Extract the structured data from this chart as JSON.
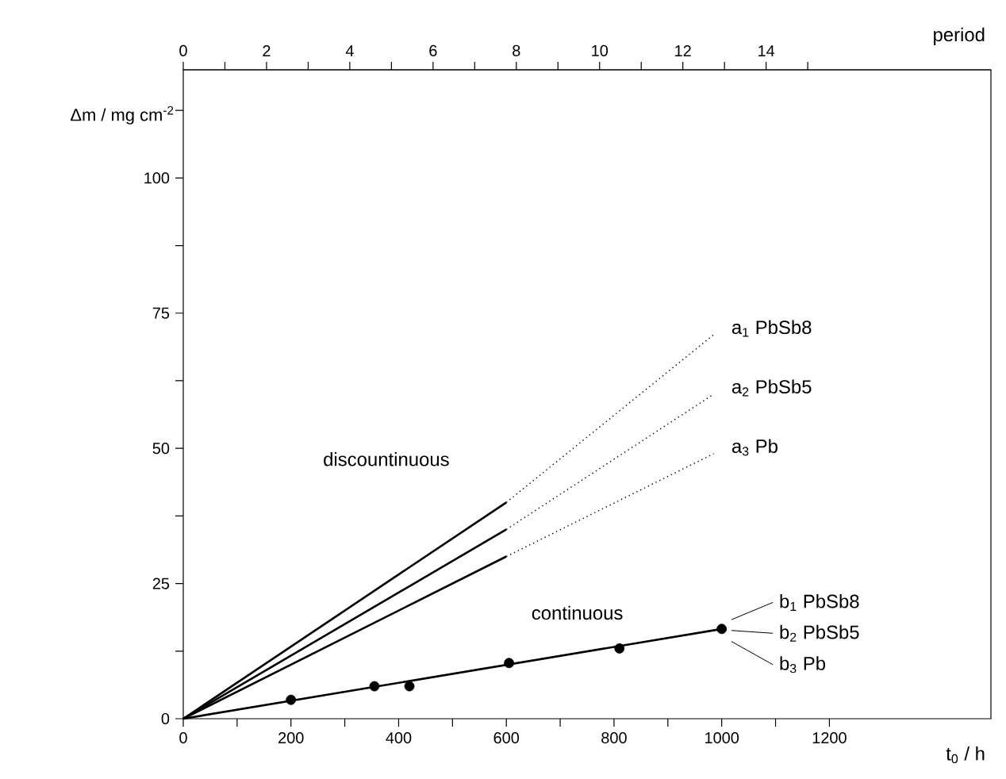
{
  "chart_data": {
    "type": "line",
    "xlabel": "t$_{0}$ / h",
    "ylabel": "Δm / mg cm$^{-2}$",
    "x2label": "period",
    "xlim": [
      0,
      1500
    ],
    "ylim": [
      0,
      120
    ],
    "x2lim": [
      0,
      19.4
    ],
    "xticks": [
      0,
      {
        "value": 100,
        "label": null
      },
      200,
      {
        "value": 300,
        "label": null
      },
      400,
      {
        "value": 500,
        "label": null
      },
      600,
      {
        "value": 700,
        "label": null
      },
      800,
      {
        "value": 900,
        "label": null
      },
      1000,
      {
        "value": 1100,
        "label": null
      },
      1200
    ],
    "yticks": [
      0,
      {
        "value": 12.5,
        "label": null
      },
      25,
      {
        "value": 37.5,
        "label": null
      },
      50,
      {
        "value": 62.5,
        "label": null
      },
      75,
      {
        "value": 87.5,
        "label": null
      },
      100,
      {
        "value": 112.5,
        "label": null
      }
    ],
    "x2ticks": [
      0,
      {
        "value": 1,
        "label": null
      },
      2,
      {
        "value": 3,
        "label": null
      },
      4,
      {
        "value": 5,
        "label": null
      },
      6,
      {
        "value": 7,
        "label": null
      },
      8,
      {
        "value": 9,
        "label": null
      },
      10,
      {
        "value": 11,
        "label": null
      },
      12,
      {
        "value": 13,
        "label": null
      },
      14,
      {
        "value": 15,
        "label": null
      }
    ],
    "grid": false,
    "series": [
      {
        "color": "#000000",
        "line_style": "solid",
        "x": [
          0,
          600
        ],
        "values": [
          0,
          40
        ]
      },
      {
        "color": "#000000",
        "line_style": "solid",
        "x": [
          0,
          600
        ],
        "values": [
          0,
          35
        ]
      },
      {
        "color": "#000000",
        "line_style": "solid",
        "x": [
          0,
          600
        ],
        "values": [
          0,
          30
        ]
      },
      {
        "name": "a$_{1}$ PbSb8",
        "color": "#000000",
        "line_style": "dotted",
        "x": [
          600,
          985
        ],
        "values": [
          40,
          71
        ]
      },
      {
        "name": "a$_{2}$ PbSb5",
        "color": "#000000",
        "line_style": "dotted",
        "x": [
          600,
          985
        ],
        "values": [
          35,
          60
        ]
      },
      {
        "name": "a$_{3}$ Pb",
        "color": "#000000",
        "line_style": "dotted",
        "x": [
          600,
          985
        ],
        "values": [
          30,
          49
        ]
      },
      {
        "color": "#000000",
        "line_style": "solid",
        "x": [
          0,
          1000
        ],
        "values": [
          0,
          16.6
        ]
      },
      {
        "type": "scatter",
        "marker": "circle",
        "color": "#000000",
        "x": [
          200,
          355,
          420,
          605,
          810,
          1000
        ],
        "values": [
          3.5,
          6,
          6,
          10.3,
          13,
          16.6
        ]
      }
    ],
    "annotations": [
      "discountinuous",
      "continuous",
      "b$_{1}$ PbSb8",
      "b$_{2}$ PbSb5",
      "b$_{3}$ Pb"
    ]
  }
}
